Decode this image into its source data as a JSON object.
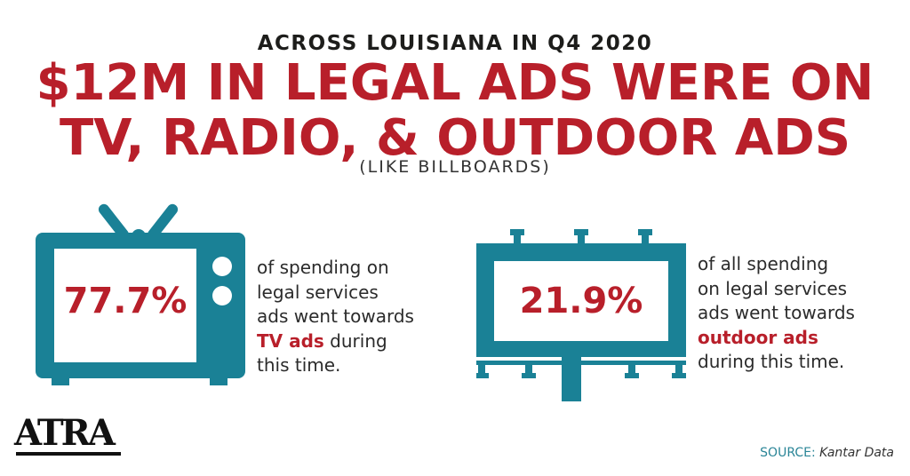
{
  "kicker": "ACROSS LOUISIANA IN Q4 2020",
  "headline": {
    "line1": "$12M IN LEGAL ADS WERE ON",
    "line2": "TV, RADIO, & OUTDOOR ADS"
  },
  "subhead": "(LIKE BILLBOARDS)",
  "tv_stat": {
    "value": "77.7%",
    "desc_line1": "of spending on",
    "desc_line2": "legal services",
    "desc_line3": "ads went towards",
    "desc_emphasis": "TV ads",
    "desc_line4_rest": " during",
    "desc_line5": "this time."
  },
  "outdoor_stat": {
    "value": "21.9%",
    "desc_line1": "of all spending",
    "desc_line2": "on legal services",
    "desc_line3": "ads went towards",
    "desc_emphasis": "outdoor ads",
    "desc_line5": "during this time."
  },
  "logo_text": "ATRA",
  "source": {
    "label": "SOURCE:",
    "name": "Kantar Data"
  },
  "colors": {
    "accent_red": "#b81f2a",
    "icon_teal": "#1a8196",
    "text_dark": "#1d1d1b"
  },
  "icons": {
    "tv": "tv-icon",
    "billboard": "billboard-icon"
  }
}
